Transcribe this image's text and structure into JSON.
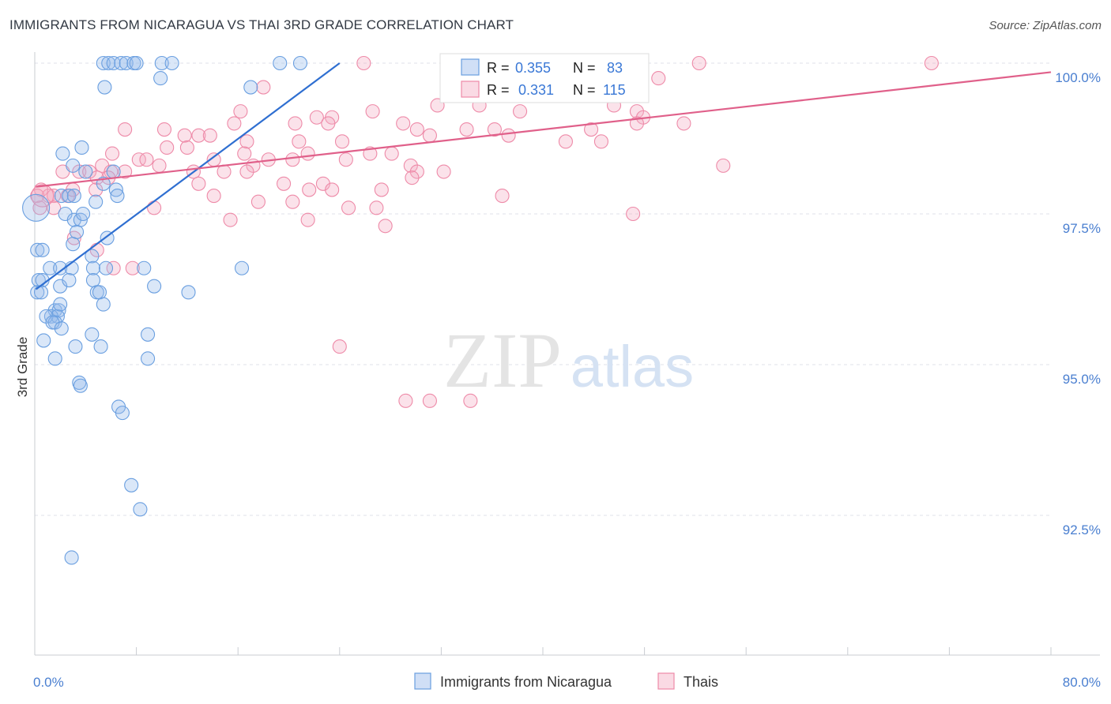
{
  "title": "IMMIGRANTS FROM NICARAGUA VS THAI 3RD GRADE CORRELATION CHART",
  "source": "Source: ZipAtlas.com",
  "watermark": {
    "zip": "ZIP",
    "atlas": "atlas"
  },
  "colors": {
    "blue": "#6a9fe0",
    "blue_line": "#2f6fd1",
    "blue_fill": "rgba(150,185,236,0.35)",
    "pink": "#ee8aa8",
    "pink_line": "#e0608a",
    "pink_fill": "rgba(244,172,196,0.35)",
    "axis_label": "#4a7fd0",
    "grid": "#dcdfe6"
  },
  "legend_stats": [
    {
      "r_label": "R =",
      "r_value": "0.355",
      "n_label": "N =",
      "n_value": "83"
    },
    {
      "r_label": "R =",
      "r_value": "0.331",
      "n_label": "N =",
      "n_value": "115"
    }
  ],
  "chart_data": {
    "type": "scatter",
    "title": "IMMIGRANTS FROM NICARAGUA VS THAI 3RD GRADE CORRELATION CHART",
    "xlabel": "",
    "ylabel": "3rd Grade",
    "xlim": [
      0,
      80
    ],
    "ylim": [
      90.0,
      100.25
    ],
    "x_tick_labels": [
      {
        "value": 0,
        "label": "0.0%"
      },
      {
        "value": 80,
        "label": "80.0%"
      }
    ],
    "y_tick_labels": [
      {
        "value": 100.0,
        "label": "100.0%"
      },
      {
        "value": 97.5,
        "label": "97.5%"
      },
      {
        "value": 95.0,
        "label": "95.0%"
      },
      {
        "value": 92.5,
        "label": "92.5%"
      }
    ],
    "series": [
      {
        "name": "Immigrants from Nicaragua",
        "color": "#6a9fe0",
        "trend": {
          "x": [
            0.1,
            24
          ],
          "y": [
            96.25,
            100.0
          ]
        },
        "points": [
          [
            5.4,
            100.0
          ],
          [
            5.8,
            100.0
          ],
          [
            6.2,
            100.0
          ],
          [
            6.8,
            100.0
          ],
          [
            7.2,
            100.0
          ],
          [
            7.8,
            100.0
          ],
          [
            8.0,
            100.0
          ],
          [
            10.0,
            100.0
          ],
          [
            10.8,
            100.0
          ],
          [
            19.3,
            100.0
          ],
          [
            20.9,
            100.0
          ],
          [
            5.5,
            99.6
          ],
          [
            9.9,
            99.75
          ],
          [
            17.0,
            99.6
          ],
          [
            2.2,
            98.5
          ],
          [
            3.0,
            98.3
          ],
          [
            3.7,
            98.6
          ],
          [
            4.0,
            98.2
          ],
          [
            5.4,
            98.0
          ],
          [
            6.2,
            98.2
          ],
          [
            2.1,
            97.8
          ],
          [
            2.7,
            97.8
          ],
          [
            3.1,
            97.8
          ],
          [
            6.4,
            97.9
          ],
          [
            6.5,
            97.8
          ],
          [
            2.4,
            97.5
          ],
          [
            3.1,
            97.4
          ],
          [
            3.6,
            97.4
          ],
          [
            3.8,
            97.5
          ],
          [
            4.8,
            97.7
          ],
          [
            3.3,
            97.2
          ],
          [
            3.0,
            97.0
          ],
          [
            5.7,
            97.1
          ],
          [
            0.2,
            96.9
          ],
          [
            0.6,
            96.9
          ],
          [
            1.2,
            96.6
          ],
          [
            2.0,
            96.6
          ],
          [
            2.9,
            96.6
          ],
          [
            4.5,
            96.8
          ],
          [
            4.6,
            96.6
          ],
          [
            5.6,
            96.6
          ],
          [
            8.6,
            96.6
          ],
          [
            16.3,
            96.6
          ],
          [
            0.3,
            96.4
          ],
          [
            0.6,
            96.4
          ],
          [
            2.0,
            96.3
          ],
          [
            2.7,
            96.4
          ],
          [
            4.6,
            96.4
          ],
          [
            4.9,
            96.2
          ],
          [
            5.1,
            96.2
          ],
          [
            9.4,
            96.3
          ],
          [
            12.1,
            96.2
          ],
          [
            0.2,
            96.2
          ],
          [
            0.5,
            96.2
          ],
          [
            1.6,
            95.9
          ],
          [
            1.9,
            95.9
          ],
          [
            1.3,
            95.8
          ],
          [
            1.8,
            95.8
          ],
          [
            0.9,
            95.8
          ],
          [
            1.6,
            95.7
          ],
          [
            2.0,
            96.0
          ],
          [
            5.4,
            96.0
          ],
          [
            1.4,
            95.7
          ],
          [
            2.1,
            95.6
          ],
          [
            0.7,
            95.4
          ],
          [
            4.5,
            95.5
          ],
          [
            3.2,
            95.3
          ],
          [
            5.2,
            95.3
          ],
          [
            1.6,
            95.1
          ],
          [
            8.9,
            95.5
          ],
          [
            8.9,
            95.1
          ],
          [
            3.5,
            94.7
          ],
          [
            3.6,
            94.65
          ],
          [
            6.6,
            94.3
          ],
          [
            6.9,
            94.2
          ],
          [
            7.6,
            93.0
          ],
          [
            8.3,
            92.6
          ],
          [
            2.9,
            91.8
          ]
        ]
      },
      {
        "name": "Thais",
        "color": "#ee8aa8",
        "trend": {
          "x": [
            0.1,
            80
          ],
          "y": [
            97.95,
            99.85
          ]
        },
        "points": [
          [
            25.9,
            100.0
          ],
          [
            32.8,
            100.0
          ],
          [
            39.1,
            100.0
          ],
          [
            42.6,
            100.0
          ],
          [
            52.3,
            100.0
          ],
          [
            70.6,
            100.0
          ],
          [
            49.1,
            99.75
          ],
          [
            40.6,
            99.5
          ],
          [
            34.6,
            99.5
          ],
          [
            37.0,
            99.9
          ],
          [
            36.1,
            99.5
          ],
          [
            18.0,
            99.6
          ],
          [
            23.4,
            99.1
          ],
          [
            26.6,
            99.2
          ],
          [
            16.2,
            99.2
          ],
          [
            31.7,
            99.3
          ],
          [
            35.0,
            99.3
          ],
          [
            38.2,
            99.2
          ],
          [
            45.6,
            99.3
          ],
          [
            47.4,
            99.2
          ],
          [
            47.9,
            99.1
          ],
          [
            15.7,
            99.0
          ],
          [
            20.5,
            99.0
          ],
          [
            22.2,
            99.1
          ],
          [
            23.1,
            99.0
          ],
          [
            29.0,
            99.0
          ],
          [
            30.1,
            98.9
          ],
          [
            31.1,
            98.8
          ],
          [
            34.0,
            98.9
          ],
          [
            37.3,
            98.8
          ],
          [
            43.8,
            98.9
          ],
          [
            47.4,
            99.0
          ],
          [
            44.6,
            98.7
          ],
          [
            36.2,
            98.9
          ],
          [
            7.1,
            98.9
          ],
          [
            11.8,
            98.8
          ],
          [
            12.9,
            98.8
          ],
          [
            13.8,
            98.8
          ],
          [
            16.7,
            98.7
          ],
          [
            20.8,
            98.7
          ],
          [
            24.2,
            98.7
          ],
          [
            6.1,
            98.5
          ],
          [
            8.2,
            98.4
          ],
          [
            10.4,
            98.6
          ],
          [
            12.0,
            98.6
          ],
          [
            14.1,
            98.4
          ],
          [
            17.2,
            98.3
          ],
          [
            18.4,
            98.4
          ],
          [
            20.3,
            98.4
          ],
          [
            21.5,
            98.5
          ],
          [
            24.5,
            98.4
          ],
          [
            26.4,
            98.5
          ],
          [
            28.1,
            98.5
          ],
          [
            29.6,
            98.3
          ],
          [
            5.3,
            98.3
          ],
          [
            6.0,
            98.2
          ],
          [
            7.1,
            98.2
          ],
          [
            8.8,
            98.4
          ],
          [
            9.8,
            98.3
          ],
          [
            12.5,
            98.2
          ],
          [
            14.9,
            98.2
          ],
          [
            16.7,
            98.2
          ],
          [
            30.1,
            98.2
          ],
          [
            32.2,
            98.2
          ],
          [
            54.2,
            98.3
          ],
          [
            2.2,
            98.2
          ],
          [
            3.5,
            98.2
          ],
          [
            4.3,
            98.2
          ],
          [
            5.8,
            98.1
          ],
          [
            4.9,
            98.1
          ],
          [
            12.9,
            98.0
          ],
          [
            19.6,
            98.0
          ],
          [
            21.6,
            97.9
          ],
          [
            22.7,
            98.0
          ],
          [
            23.4,
            97.9
          ],
          [
            27.3,
            97.9
          ],
          [
            29.7,
            98.1
          ],
          [
            0.5,
            97.9
          ],
          [
            1.1,
            97.8
          ],
          [
            1.5,
            97.8
          ],
          [
            2.6,
            97.8
          ],
          [
            3.0,
            97.9
          ],
          [
            4.8,
            97.9
          ],
          [
            14.1,
            97.8
          ],
          [
            17.6,
            97.7
          ],
          [
            20.3,
            97.7
          ],
          [
            24.7,
            97.6
          ],
          [
            26.9,
            97.6
          ],
          [
            36.8,
            97.8
          ],
          [
            47.1,
            97.5
          ],
          [
            0.2,
            97.8
          ],
          [
            0.4,
            97.6
          ],
          [
            1.5,
            97.6
          ],
          [
            9.4,
            97.6
          ],
          [
            15.4,
            97.4
          ],
          [
            21.5,
            97.4
          ],
          [
            27.6,
            97.3
          ],
          [
            3.1,
            97.1
          ],
          [
            4.9,
            96.9
          ],
          [
            6.2,
            96.6
          ],
          [
            7.7,
            96.6
          ],
          [
            24.0,
            95.3
          ],
          [
            29.2,
            94.4
          ],
          [
            31.1,
            94.4
          ],
          [
            34.3,
            94.4
          ],
          [
            16.5,
            98.5
          ],
          [
            41.8,
            98.7
          ],
          [
            10.2,
            98.9
          ],
          [
            51.1,
            99.0
          ]
        ]
      }
    ]
  }
}
